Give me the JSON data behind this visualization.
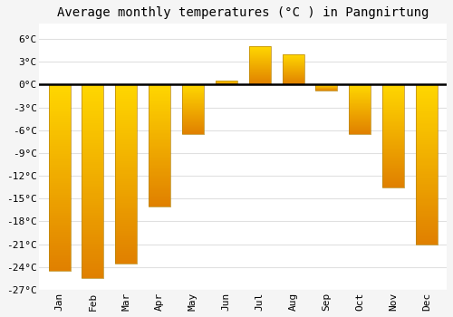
{
  "title": "Average monthly temperatures (°C ) in Pangnirtung",
  "months": [
    "Jan",
    "Feb",
    "Mar",
    "Apr",
    "May",
    "Jun",
    "Jul",
    "Aug",
    "Sep",
    "Oct",
    "Nov",
    "Dec"
  ],
  "values": [
    -24.5,
    -25.5,
    -23.5,
    -16.0,
    -6.5,
    0.5,
    5.0,
    4.0,
    -0.8,
    -6.5,
    -13.5,
    -21.0
  ],
  "bar_color": "#FFA500",
  "bar_edge_color": "#b8860b",
  "ylim": [
    -27,
    8
  ],
  "yticks": [
    -27,
    -24,
    -21,
    -18,
    -15,
    -12,
    -9,
    -6,
    -3,
    0,
    3,
    6
  ],
  "ytick_labels": [
    "-27°C",
    "-24°C",
    "-21°C",
    "-18°C",
    "-15°C",
    "-12°C",
    "-9°C",
    "-6°C",
    "-3°C",
    "0°C",
    "3°C",
    "6°C"
  ],
  "background_color": "#f5f5f5",
  "plot_bg_color": "#ffffff",
  "grid_color": "#e0e0e0",
  "title_fontsize": 10,
  "tick_fontsize": 8,
  "bar_top_color": "#FFD700",
  "bar_bottom_color": "#E08000"
}
